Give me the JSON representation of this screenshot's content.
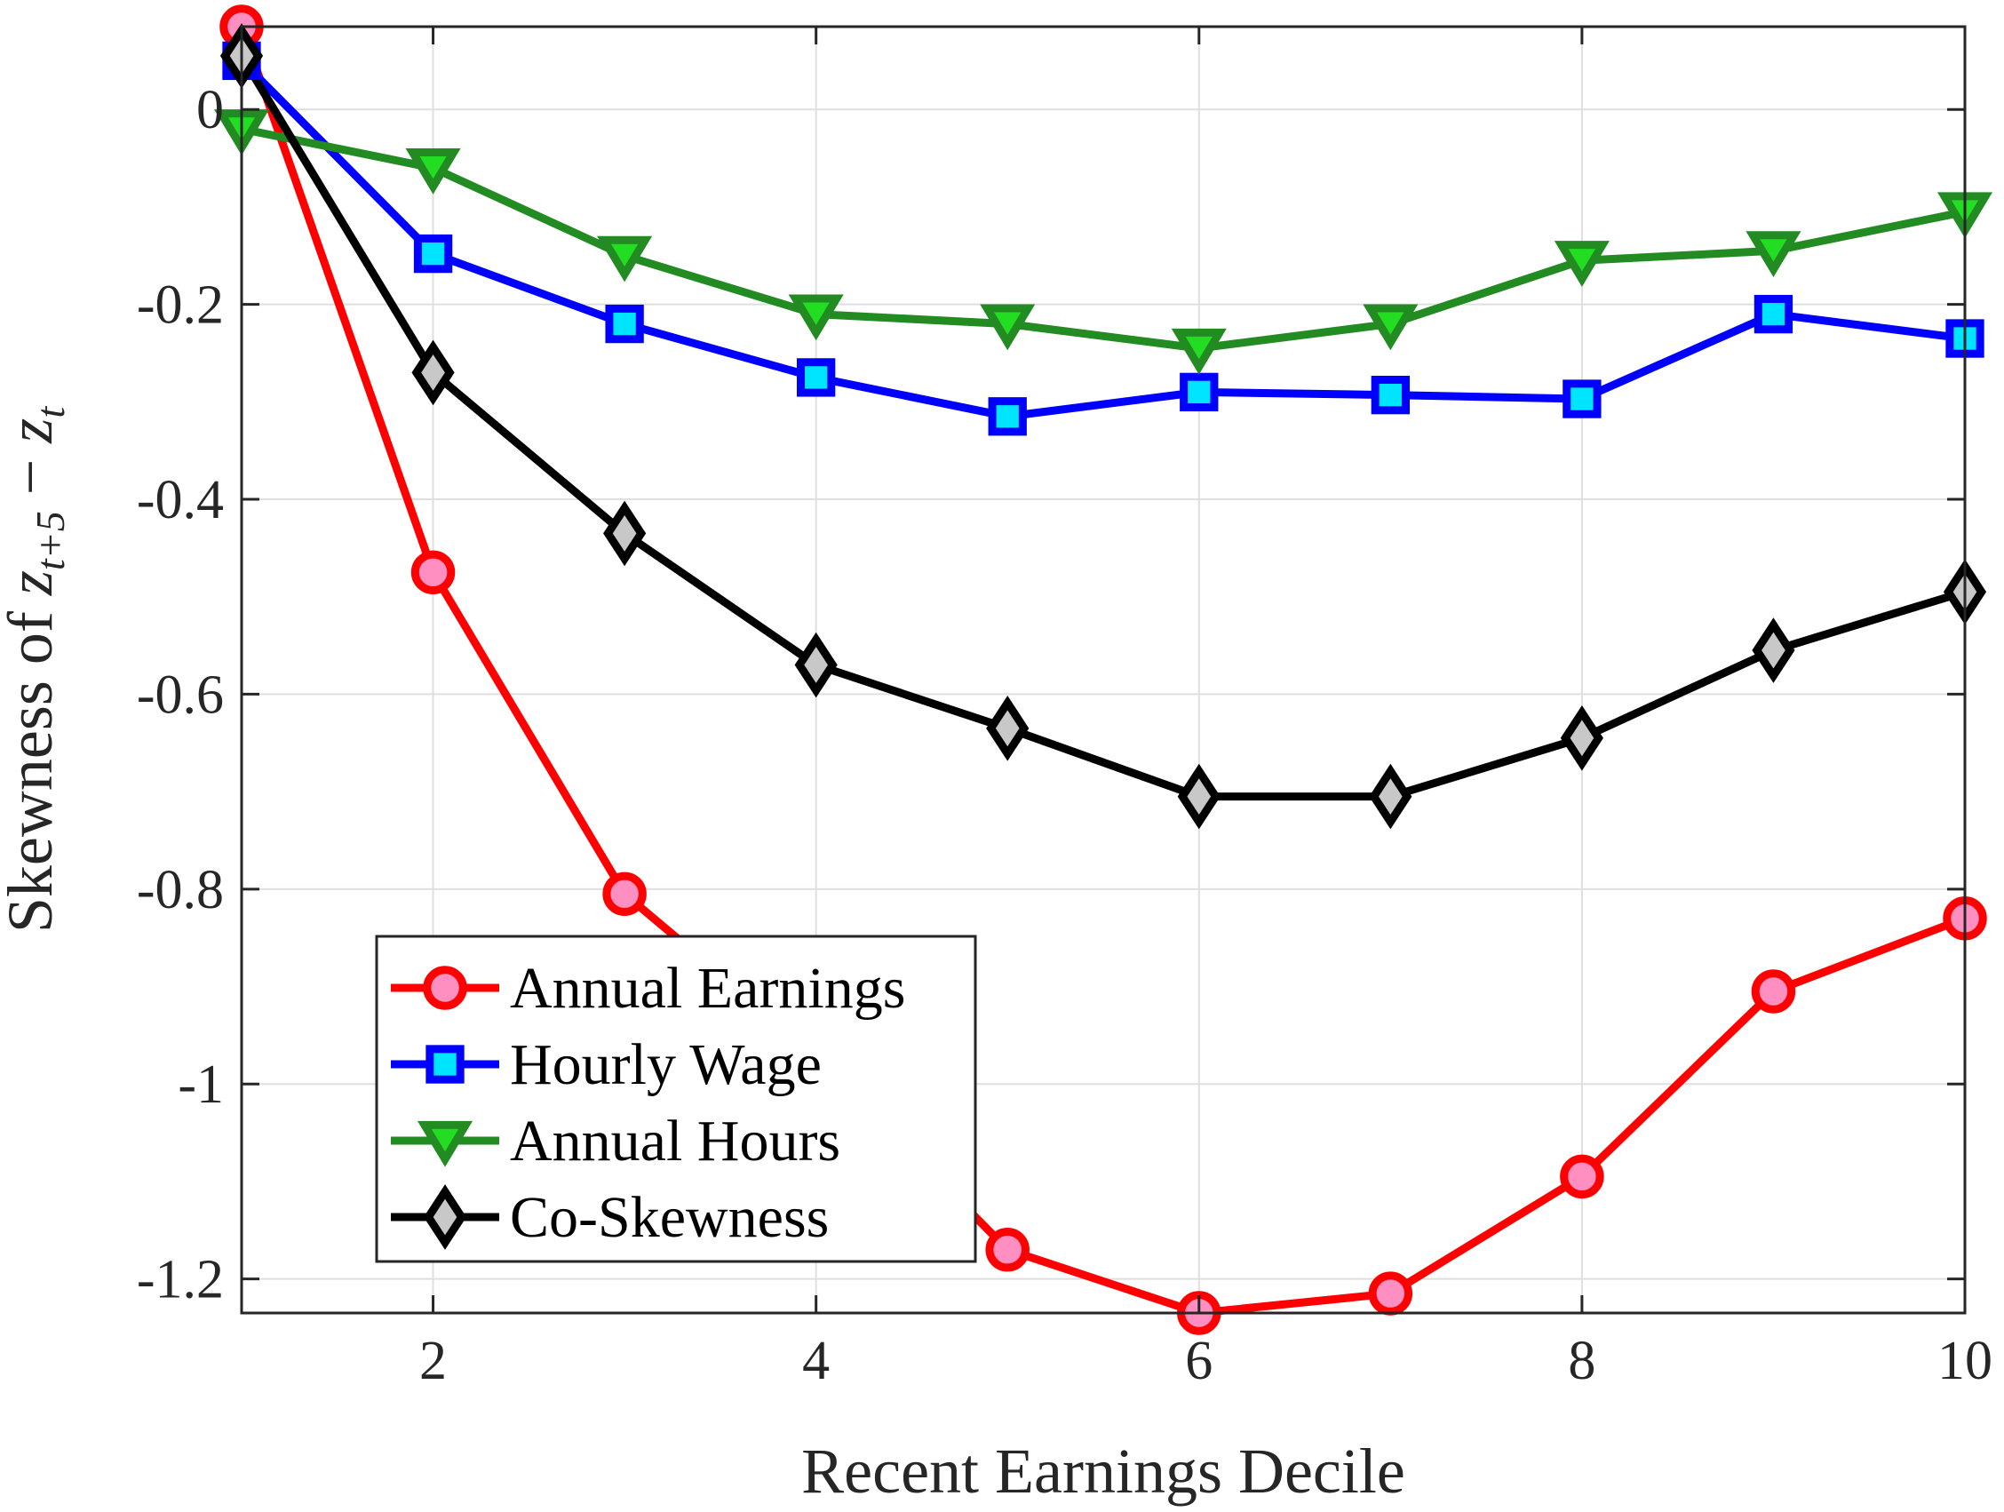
{
  "chart_data": {
    "type": "line",
    "xlabel": "Recent Earnings Decile",
    "ylabel": {
      "prefix": "Skewness of ",
      "var1": "z",
      "sub1": "t+5",
      "minus": " − ",
      "var2": "z",
      "sub2": "t"
    },
    "xlim": [
      1,
      10
    ],
    "ylim": [
      -1.235,
      0.085
    ],
    "xticks": [
      {
        "value": 2,
        "label": "2"
      },
      {
        "value": 4,
        "label": "4"
      },
      {
        "value": 6,
        "label": "6"
      },
      {
        "value": 8,
        "label": "8"
      },
      {
        "value": 10,
        "label": "10"
      }
    ],
    "yticks": [
      {
        "value": 0,
        "label": "0"
      },
      {
        "value": -0.2,
        "label": "-0.2"
      },
      {
        "value": -0.4,
        "label": "-0.4"
      },
      {
        "value": -0.6,
        "label": "-0.6"
      },
      {
        "value": -0.8,
        "label": "-0.8"
      },
      {
        "value": -1,
        "label": "-1"
      },
      {
        "value": -1.2,
        "label": "-1.2"
      }
    ],
    "grid": true,
    "legend_position": "bottom-left",
    "x": [
      1,
      2,
      3,
      4,
      5,
      6,
      7,
      8,
      9,
      10
    ],
    "series": [
      {
        "name": "Annual Earnings",
        "marker": "circle",
        "color": "#ff0000",
        "marker_fill": "#ff8fc0",
        "values": [
          0.085,
          -0.475,
          -0.805,
          -0.97,
          -1.17,
          -1.235,
          -1.215,
          -1.095,
          -0.905,
          -0.83
        ]
      },
      {
        "name": "Hourly Wage",
        "marker": "square",
        "color": "#0000ff",
        "marker_fill": "#00e5ff",
        "values": [
          0.05,
          -0.148,
          -0.22,
          -0.275,
          -0.315,
          -0.29,
          -0.293,
          -0.297,
          -0.21,
          -0.235
        ]
      },
      {
        "name": "Annual Hours",
        "marker": "triangle-down",
        "color": "#228b22",
        "marker_fill": "#22dd22",
        "values": [
          -0.02,
          -0.06,
          -0.15,
          -0.21,
          -0.22,
          -0.245,
          -0.22,
          -0.155,
          -0.145,
          -0.105
        ]
      },
      {
        "name": "Co-Skewness",
        "marker": "diamond",
        "color": "#000000",
        "marker_fill": "#c8c8c8",
        "values": [
          0.055,
          -0.27,
          -0.435,
          -0.57,
          -0.635,
          -0.705,
          -0.705,
          -0.645,
          -0.555,
          -0.495
        ]
      }
    ]
  }
}
